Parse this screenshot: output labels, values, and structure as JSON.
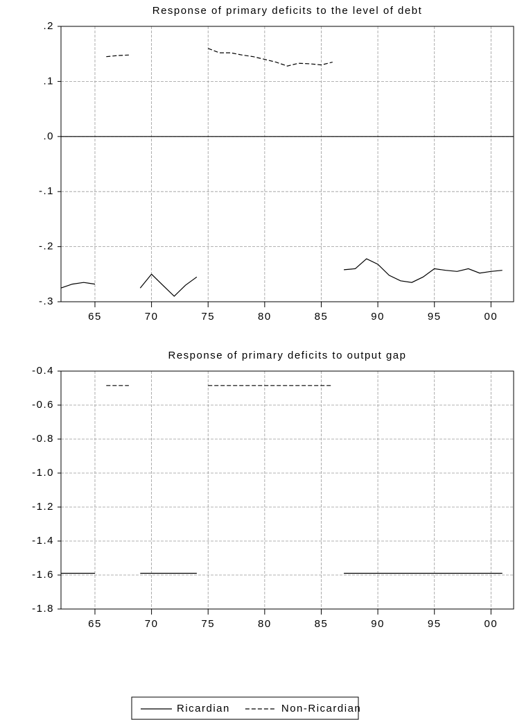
{
  "chart_data": [
    {
      "type": "line",
      "title": "Response of primary deficits to the level of debt",
      "x": [
        1962,
        1963,
        1964,
        1965,
        1966,
        1967,
        1968,
        1969,
        1970,
        1971,
        1972,
        1973,
        1974,
        1975,
        1976,
        1977,
        1978,
        1979,
        1980,
        1981,
        1982,
        1983,
        1984,
        1985,
        1986,
        1987,
        1988,
        1989,
        1990,
        1991,
        1992,
        1993,
        1994,
        1995,
        1996,
        1997,
        1998,
        1999,
        2000,
        2001
      ],
      "series": [
        {
          "color": "#000000",
          "style": "solid",
          "values": [
            -0.275,
            -0.268,
            -0.265,
            -0.268,
            null,
            null,
            null,
            -0.275,
            -0.25,
            -0.27,
            -0.29,
            -0.27,
            -0.255,
            null,
            null,
            null,
            null,
            null,
            null,
            null,
            null,
            null,
            null,
            null,
            null,
            -0.242,
            -0.24,
            -0.222,
            -0.232,
            -0.252,
            -0.262,
            -0.265,
            -0.255,
            -0.24,
            -0.243,
            -0.245,
            -0.24,
            -0.248,
            -0.245,
            -0.243
          ]
        },
        {
          "color": "#000000",
          "style": "dashed",
          "values": [
            null,
            null,
            null,
            null,
            0.145,
            0.147,
            0.148,
            null,
            null,
            null,
            null,
            null,
            null,
            0.16,
            0.152,
            0.152,
            0.148,
            0.145,
            0.14,
            0.135,
            0.128,
            0.133,
            0.132,
            0.13,
            0.135,
            null,
            null,
            null,
            null,
            null,
            null,
            null,
            null,
            null,
            null,
            null,
            null,
            null,
            null,
            null
          ]
        }
      ],
      "xlim": [
        1962,
        2002
      ],
      "xticks": [
        {
          "value": 1965,
          "label": "65"
        },
        {
          "value": 1970,
          "label": "70"
        },
        {
          "value": 1975,
          "label": "75"
        },
        {
          "value": 1980,
          "label": "80"
        },
        {
          "value": 1985,
          "label": "85"
        },
        {
          "value": 1990,
          "label": "90"
        },
        {
          "value": 1995,
          "label": "95"
        },
        {
          "value": 2000,
          "label": "00"
        }
      ],
      "ylim": [
        -0.3,
        0.2
      ],
      "yticks": [
        {
          "value": 0.2,
          "label": ".2"
        },
        {
          "value": 0.1,
          "label": ".1"
        },
        {
          "value": 0,
          "label": ".0"
        },
        {
          "value": -0.1,
          "label": "-.1"
        },
        {
          "value": -0.2,
          "label": "-.2"
        },
        {
          "value": -0.3,
          "label": "-.3"
        }
      ],
      "grid": true,
      "zero_line": true
    },
    {
      "type": "line",
      "title": "Response of primary deficits to output gap",
      "x": [
        1962,
        1963,
        1964,
        1965,
        1966,
        1967,
        1968,
        1969,
        1970,
        1971,
        1972,
        1973,
        1974,
        1975,
        1976,
        1977,
        1978,
        1979,
        1980,
        1981,
        1982,
        1983,
        1984,
        1985,
        1986,
        1987,
        1988,
        1989,
        1990,
        1991,
        1992,
        1993,
        1994,
        1995,
        1996,
        1997,
        1998,
        1999,
        2000,
        2001
      ],
      "series": [
        {
          "name": "Ricardian",
          "color": "#000000",
          "style": "solid",
          "values": [
            -1.59,
            -1.59,
            -1.59,
            -1.59,
            null,
            null,
            null,
            -1.59,
            -1.59,
            -1.59,
            -1.59,
            -1.59,
            -1.59,
            null,
            null,
            null,
            null,
            null,
            null,
            null,
            null,
            null,
            null,
            null,
            null,
            -1.59,
            -1.59,
            -1.59,
            -1.59,
            -1.59,
            -1.59,
            -1.59,
            -1.59,
            -1.59,
            -1.59,
            -1.59,
            -1.59,
            -1.59,
            -1.59,
            -1.59
          ]
        },
        {
          "name": "Non-Ricardian",
          "color": "#000000",
          "style": "dashed",
          "values": [
            null,
            null,
            null,
            null,
            -0.485,
            -0.485,
            -0.485,
            null,
            null,
            null,
            null,
            null,
            null,
            -0.485,
            -0.485,
            -0.485,
            -0.485,
            -0.485,
            -0.485,
            -0.485,
            -0.485,
            -0.485,
            -0.485,
            -0.485,
            -0.485,
            null,
            null,
            null,
            null,
            null,
            null,
            null,
            null,
            null,
            null,
            null,
            null,
            null,
            null,
            null
          ]
        }
      ],
      "xlim": [
        1962,
        2002
      ],
      "xticks": [
        {
          "value": 1965,
          "label": "65"
        },
        {
          "value": 1970,
          "label": "70"
        },
        {
          "value": 1975,
          "label": "75"
        },
        {
          "value": 1980,
          "label": "80"
        },
        {
          "value": 1985,
          "label": "85"
        },
        {
          "value": 1990,
          "label": "90"
        },
        {
          "value": 1995,
          "label": "95"
        },
        {
          "value": 2000,
          "label": "00"
        }
      ],
      "ylim": [
        -1.8,
        -0.4
      ],
      "yticks": [
        -0.4,
        -0.6,
        -0.8,
        {
          "value": -1,
          "label": "-1.0"
        },
        -1.2,
        -1.4,
        -1.6,
        -1.8
      ],
      "grid": true,
      "legend": "bottom"
    }
  ]
}
